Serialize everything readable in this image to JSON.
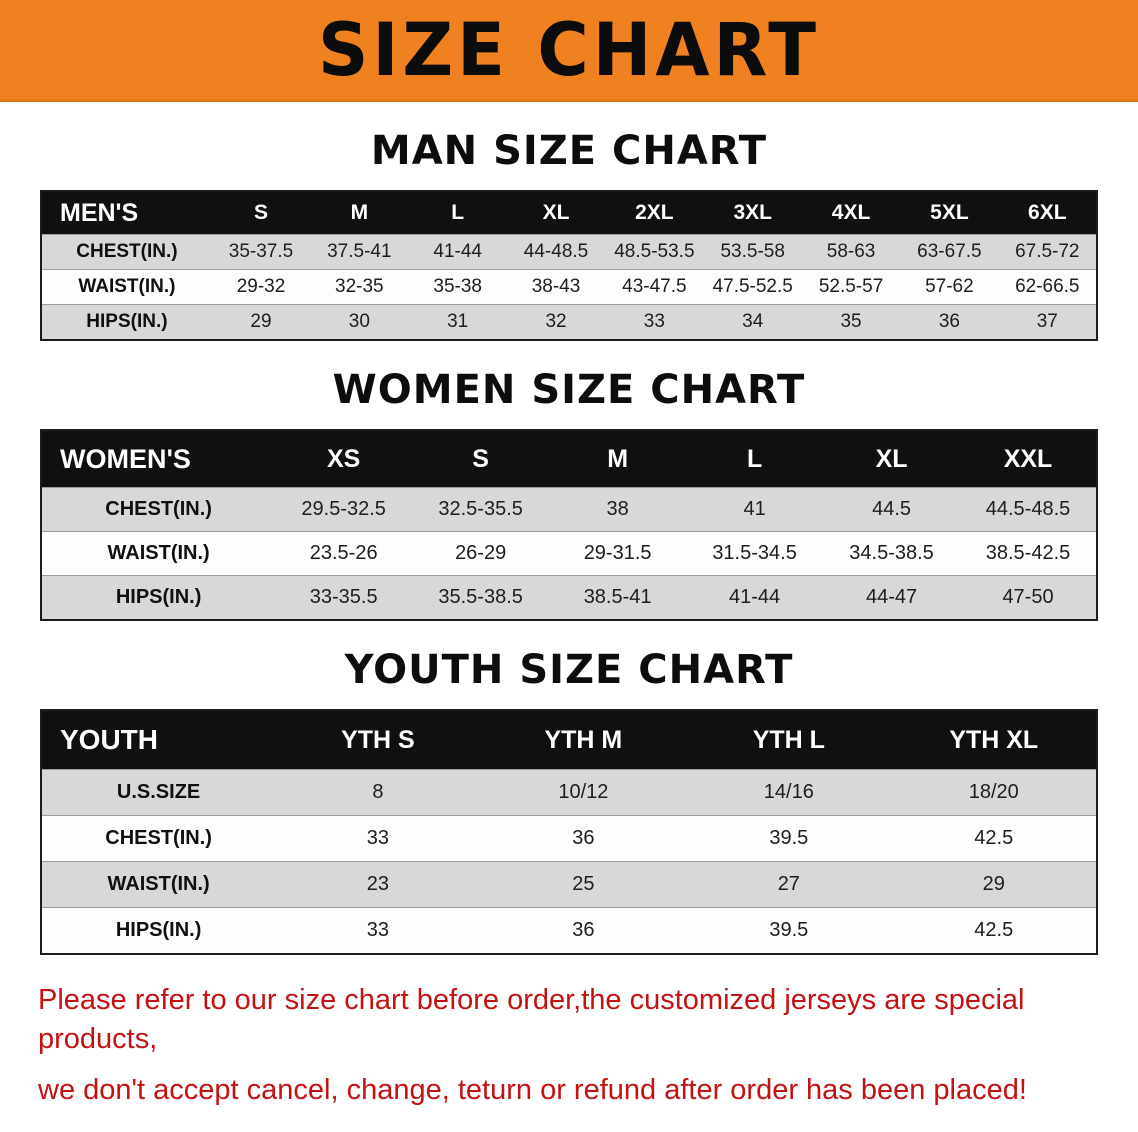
{
  "banner": {
    "title": "SIZE CHART"
  },
  "sections": [
    {
      "title": "MAN SIZE CHART",
      "table": {
        "header": [
          "MEN'S",
          "S",
          "M",
          "L",
          "XL",
          "2XL",
          "3XL",
          "4XL",
          "5XL",
          "6XL"
        ],
        "rows": [
          [
            "CHEST(IN.)",
            "35-37.5",
            "37.5-41",
            "41-44",
            "44-48.5",
            "48.5-53.5",
            "53.5-58",
            "58-63",
            "63-67.5",
            "67.5-72"
          ],
          [
            "WAIST(IN.)",
            "29-32",
            "32-35",
            "35-38",
            "38-43",
            "43-47.5",
            "47.5-52.5",
            "52.5-57",
            "57-62",
            "62-66.5"
          ],
          [
            "HIPS(IN.)",
            "29",
            "30",
            "31",
            "32",
            "33",
            "34",
            "35",
            "36",
            "37"
          ]
        ]
      }
    },
    {
      "title": "WOMEN SIZE CHART",
      "table": {
        "header": [
          "WOMEN'S",
          "XS",
          "S",
          "M",
          "L",
          "XL",
          "XXL"
        ],
        "rows": [
          [
            "CHEST(IN.)",
            "29.5-32.5",
            "32.5-35.5",
            "38",
            "41",
            "44.5",
            "44.5-48.5"
          ],
          [
            "WAIST(IN.)",
            "23.5-26",
            "26-29",
            "29-31.5",
            "31.5-34.5",
            "34.5-38.5",
            "38.5-42.5"
          ],
          [
            "HIPS(IN.)",
            "33-35.5",
            "35.5-38.5",
            "38.5-41",
            "41-44",
            "44-47",
            "47-50"
          ]
        ]
      }
    },
    {
      "title": "YOUTH SIZE CHART",
      "table": {
        "header": [
          "YOUTH",
          "YTH S",
          "YTH M",
          "YTH L",
          "YTH XL"
        ],
        "rows": [
          [
            "U.S.SIZE",
            "8",
            "10/12",
            "14/16",
            "18/20"
          ],
          [
            "CHEST(IN.)",
            "33",
            "36",
            "39.5",
            "42.5"
          ],
          [
            "WAIST(IN.)",
            "23",
            "25",
            "27",
            "29"
          ],
          [
            "HIPS(IN.)",
            "33",
            "36",
            "39.5",
            "42.5"
          ]
        ]
      }
    }
  ],
  "footer": {
    "line1": "Please refer to our size chart before order,the customized jerseys are special products,",
    "line2": "we don't accept cancel, change, teturn or refund after order has been placed!"
  },
  "colors": {
    "banner_bg": "#f08120",
    "table_header_bg": "#101010",
    "row_stripe": "#d8d8d8",
    "notice_text": "#c41212"
  }
}
